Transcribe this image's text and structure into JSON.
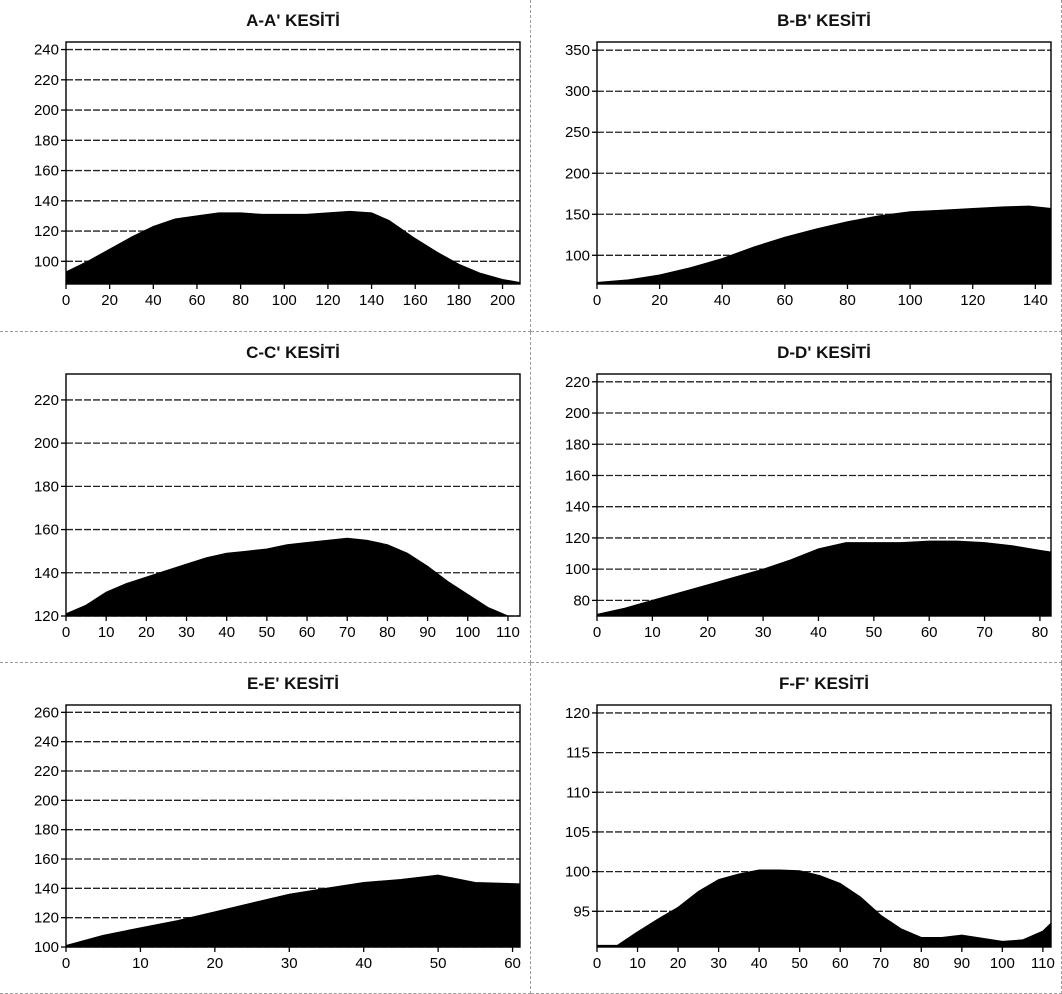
{
  "chart_data": [
    {
      "type": "area",
      "title": "A-A' KESİTİ",
      "xlabel": "",
      "ylabel": "",
      "xlim": [
        0,
        208
      ],
      "ylim": [
        85,
        245
      ],
      "xticks": [
        0,
        20,
        40,
        60,
        80,
        100,
        120,
        140,
        160,
        180,
        200
      ],
      "yticks": [
        100,
        120,
        140,
        160,
        180,
        200,
        220,
        240
      ],
      "grid": true,
      "color": "#000000",
      "points": [
        [
          0,
          93
        ],
        [
          10,
          100
        ],
        [
          20,
          108
        ],
        [
          30,
          116
        ],
        [
          40,
          123
        ],
        [
          50,
          128
        ],
        [
          60,
          130
        ],
        [
          70,
          132
        ],
        [
          80,
          132
        ],
        [
          90,
          131
        ],
        [
          100,
          131
        ],
        [
          110,
          131
        ],
        [
          120,
          132
        ],
        [
          130,
          133
        ],
        [
          140,
          132
        ],
        [
          148,
          127
        ],
        [
          160,
          115
        ],
        [
          170,
          106
        ],
        [
          180,
          98
        ],
        [
          190,
          92
        ],
        [
          200,
          88
        ],
        [
          208,
          86
        ]
      ]
    },
    {
      "type": "area",
      "title": "B-B' KESİTİ",
      "xlabel": "",
      "ylabel": "",
      "xlim": [
        0,
        145
      ],
      "ylim": [
        65,
        360
      ],
      "xticks": [
        0,
        20,
        40,
        60,
        80,
        100,
        120,
        140
      ],
      "yticks": [
        100,
        150,
        200,
        250,
        300,
        350
      ],
      "grid": true,
      "color": "#000000",
      "points": [
        [
          0,
          67
        ],
        [
          10,
          70
        ],
        [
          20,
          76
        ],
        [
          30,
          85
        ],
        [
          40,
          96
        ],
        [
          50,
          110
        ],
        [
          60,
          122
        ],
        [
          70,
          132
        ],
        [
          80,
          141
        ],
        [
          90,
          148
        ],
        [
          100,
          153
        ],
        [
          110,
          155
        ],
        [
          120,
          157
        ],
        [
          130,
          159
        ],
        [
          138,
          160
        ],
        [
          145,
          157
        ]
      ]
    },
    {
      "type": "area",
      "title": "C-C' KESİTİ",
      "xlabel": "",
      "ylabel": "",
      "xlim": [
        0,
        113
      ],
      "ylim": [
        120,
        232
      ],
      "xticks": [
        0,
        10,
        20,
        30,
        40,
        50,
        60,
        70,
        80,
        90,
        100,
        110
      ],
      "yticks": [
        120,
        140,
        160,
        180,
        200,
        220
      ],
      "grid": true,
      "color": "#000000",
      "points": [
        [
          0,
          121
        ],
        [
          5,
          125
        ],
        [
          10,
          131
        ],
        [
          15,
          135
        ],
        [
          20,
          138
        ],
        [
          25,
          141
        ],
        [
          30,
          144
        ],
        [
          35,
          147
        ],
        [
          40,
          149
        ],
        [
          45,
          150
        ],
        [
          50,
          151
        ],
        [
          55,
          153
        ],
        [
          60,
          154
        ],
        [
          65,
          155
        ],
        [
          70,
          156
        ],
        [
          75,
          155
        ],
        [
          80,
          153
        ],
        [
          85,
          149
        ],
        [
          90,
          143
        ],
        [
          95,
          136
        ],
        [
          100,
          130
        ],
        [
          105,
          124
        ],
        [
          110,
          120
        ],
        [
          113,
          120
        ]
      ]
    },
    {
      "type": "area",
      "title": "D-D' KESİTİ",
      "xlabel": "",
      "ylabel": "",
      "xlim": [
        0,
        82
      ],
      "ylim": [
        70,
        225
      ],
      "xticks": [
        0,
        10,
        20,
        30,
        40,
        50,
        60,
        70,
        80
      ],
      "yticks": [
        80,
        100,
        120,
        140,
        160,
        180,
        200,
        220
      ],
      "grid": true,
      "color": "#000000",
      "points": [
        [
          0,
          71
        ],
        [
          5,
          75
        ],
        [
          10,
          80
        ],
        [
          15,
          85
        ],
        [
          20,
          90
        ],
        [
          25,
          95
        ],
        [
          30,
          100
        ],
        [
          35,
          106
        ],
        [
          40,
          113
        ],
        [
          45,
          117
        ],
        [
          50,
          117
        ],
        [
          55,
          117
        ],
        [
          60,
          118
        ],
        [
          65,
          118
        ],
        [
          70,
          117
        ],
        [
          75,
          115
        ],
        [
          80,
          112
        ],
        [
          82,
          111
        ]
      ]
    },
    {
      "type": "area",
      "title": "E-E' KESİTİ",
      "xlabel": "",
      "ylabel": "",
      "xlim": [
        0,
        61
      ],
      "ylim": [
        100,
        265
      ],
      "xticks": [
        0,
        10,
        20,
        30,
        40,
        50,
        60
      ],
      "yticks": [
        100,
        120,
        140,
        160,
        180,
        200,
        220,
        240,
        260
      ],
      "grid": true,
      "color": "#000000",
      "points": [
        [
          0,
          101
        ],
        [
          5,
          108
        ],
        [
          10,
          113
        ],
        [
          15,
          118
        ],
        [
          20,
          124
        ],
        [
          25,
          130
        ],
        [
          30,
          136
        ],
        [
          35,
          140
        ],
        [
          40,
          144
        ],
        [
          45,
          146
        ],
        [
          50,
          149
        ],
        [
          55,
          144
        ],
        [
          61,
          143
        ]
      ]
    },
    {
      "type": "area",
      "title": "F-F' KESİTİ",
      "xlabel": "",
      "ylabel": "",
      "xlim": [
        0,
        112
      ],
      "ylim": [
        90.5,
        121
      ],
      "xticks": [
        0,
        10,
        20,
        30,
        40,
        50,
        60,
        70,
        80,
        90,
        100,
        110
      ],
      "yticks": [
        95,
        100,
        105,
        110,
        115,
        120
      ],
      "grid": true,
      "color": "#000000",
      "points": [
        [
          0,
          90.7
        ],
        [
          5,
          90.7
        ],
        [
          10,
          92.4
        ],
        [
          15,
          94
        ],
        [
          20,
          95.5
        ],
        [
          25,
          97.5
        ],
        [
          30,
          99
        ],
        [
          35,
          99.7
        ],
        [
          40,
          100.2
        ],
        [
          45,
          100.2
        ],
        [
          50,
          100.1
        ],
        [
          55,
          99.5
        ],
        [
          60,
          98.5
        ],
        [
          65,
          96.8
        ],
        [
          70,
          94.5
        ],
        [
          75,
          92.8
        ],
        [
          80,
          91.7
        ],
        [
          85,
          91.7
        ],
        [
          90,
          92
        ],
        [
          95,
          91.6
        ],
        [
          100,
          91.2
        ],
        [
          105,
          91.4
        ],
        [
          110,
          92.5
        ],
        [
          112,
          93.5
        ]
      ]
    }
  ]
}
